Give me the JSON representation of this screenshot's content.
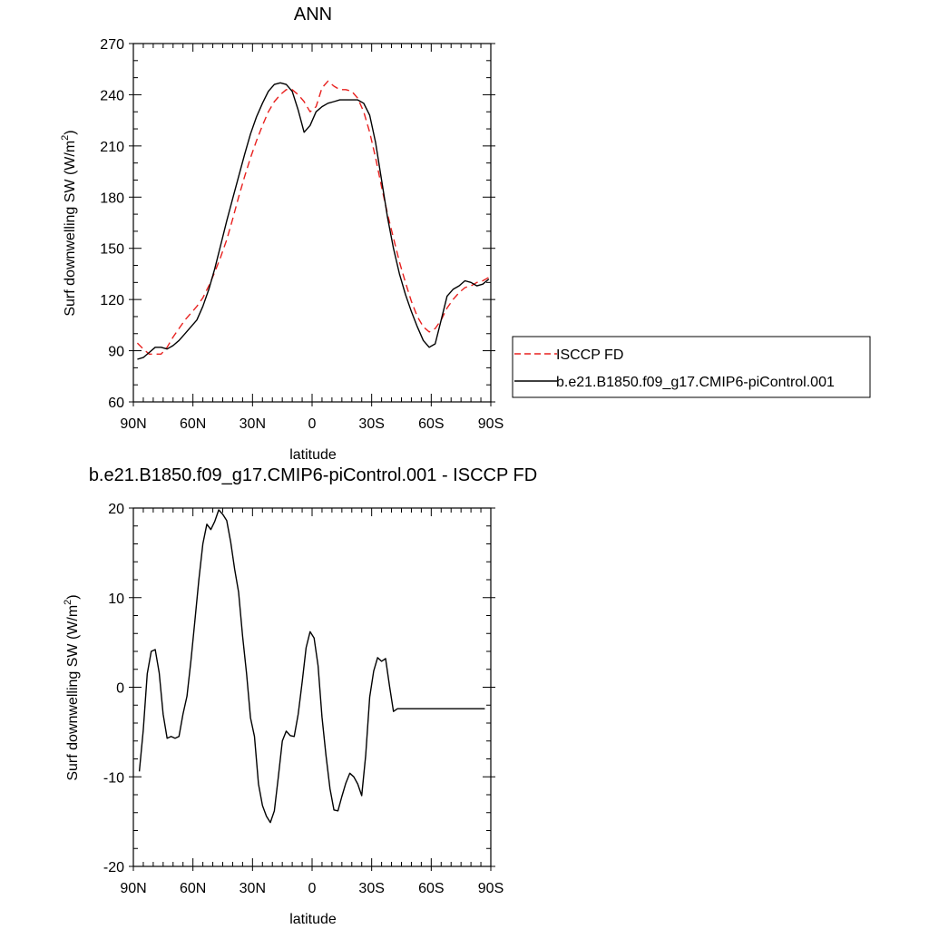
{
  "chart_data": [
    {
      "type": "line",
      "title": "ANN",
      "xlabel": "latitude",
      "ylabel_main": "Surf downwelling SW (W/m",
      "ylabel_sup": "2",
      "ylabel_tail": ")",
      "xlim": [
        90,
        -90
      ],
      "ylim": [
        60,
        270
      ],
      "x_ticks": [
        90,
        60,
        30,
        0,
        -30,
        -60,
        -90
      ],
      "x_tick_labels": [
        "90N",
        "60N",
        "30N",
        "0",
        "30S",
        "60S",
        "90S"
      ],
      "y_ticks": [
        60,
        90,
        120,
        150,
        180,
        210,
        240,
        270
      ],
      "y_tick_labels": [
        "60",
        "90",
        "120",
        "150",
        "180",
        "210",
        "240",
        "270"
      ],
      "legend_position": "right",
      "series": [
        {
          "name": "ISCCP FD",
          "color": "#e8201e",
          "dash": "dashed",
          "x": [
            88,
            85,
            82,
            79,
            76,
            73,
            70,
            67,
            64,
            61,
            58,
            55,
            52,
            49,
            46,
            43,
            40,
            37,
            34,
            31,
            28,
            25,
            22,
            19,
            16,
            13,
            10,
            7,
            4,
            1,
            -2,
            -5,
            -8,
            -11,
            -14,
            -17,
            -20,
            -23,
            -26,
            -29,
            -32,
            -35,
            -38,
            -41,
            -44,
            -47,
            -50,
            -53,
            -56,
            -59,
            -62,
            -65,
            -68,
            -71,
            -74,
            -77,
            -80,
            -83,
            -86,
            -89
          ],
          "y": [
            94.5,
            91.0,
            88.0,
            88.0,
            88.0,
            92.0,
            98.0,
            103.0,
            108.0,
            112.0,
            116.0,
            121.0,
            128.0,
            136.0,
            145.0,
            155.0,
            167.0,
            180.0,
            192.0,
            203.0,
            213.0,
            222.0,
            230.0,
            236.0,
            240.0,
            243.0,
            243.0,
            240.0,
            236.0,
            230.0,
            233.0,
            244.0,
            248.0,
            245.0,
            243.0,
            243.0,
            242.0,
            238.0,
            230.0,
            218.0,
            203.0,
            186.0,
            170.0,
            156.0,
            142.0,
            130.0,
            119.0,
            110.0,
            104.0,
            101.0,
            103.0,
            108.0,
            115.0,
            120.0,
            124.0,
            127.0,
            128.0,
            130.0,
            131.0,
            133.0
          ]
        },
        {
          "name": "b.e21.B1850.f09_g17.CMIP6-piControl.001",
          "color": "#000000",
          "dash": "solid",
          "x": [
            88,
            85,
            82,
            79,
            76,
            73,
            70,
            67,
            64,
            61,
            58,
            55,
            52,
            49,
            46,
            43,
            40,
            37,
            34,
            31,
            28,
            25,
            22,
            19,
            16,
            13,
            10,
            7,
            4,
            1,
            -2,
            -5,
            -8,
            -11,
            -14,
            -17,
            -20,
            -23,
            -26,
            -29,
            -32,
            -35,
            -38,
            -41,
            -44,
            -47,
            -50,
            -53,
            -56,
            -59,
            -62,
            -65,
            -68,
            -71,
            -74,
            -77,
            -80,
            -83,
            -86,
            -89
          ],
          "y": [
            85.0,
            86.0,
            89.0,
            92.0,
            92.0,
            91.0,
            93.0,
            96.0,
            100.0,
            104.0,
            108.0,
            116.0,
            126.0,
            138.0,
            152.0,
            166.0,
            179.0,
            192.0,
            205.0,
            217.0,
            227.0,
            235.0,
            242.0,
            246.0,
            247.0,
            246.0,
            242.0,
            231.0,
            218.0,
            222.0,
            230.0,
            233.0,
            235.0,
            236.0,
            237.0,
            237.0,
            237.0,
            237.0,
            235.0,
            228.0,
            212.0,
            190.0,
            168.0,
            150.0,
            135.0,
            123.0,
            113.0,
            104.0,
            96.0,
            92.0,
            94.0,
            108.0,
            122.0,
            126.0,
            128.0,
            131.0,
            130.0,
            128.0,
            129.0,
            132.0
          ]
        }
      ]
    },
    {
      "type": "line",
      "title": "b.e21.B1850.f09_g17.CMIP6-piControl.001 - ISCCP FD",
      "xlabel": "latitude",
      "ylabel_main": "Surf downwelling SW (W/m",
      "ylabel_sup": "2",
      "ylabel_tail": ")",
      "xlim": [
        90,
        -90
      ],
      "ylim": [
        -20,
        20
      ],
      "x_ticks": [
        90,
        60,
        30,
        0,
        -30,
        -60,
        -90
      ],
      "x_tick_labels": [
        "90N",
        "60N",
        "30N",
        "0",
        "30S",
        "60S",
        "90S"
      ],
      "y_ticks": [
        -20,
        -10,
        0,
        10,
        20
      ],
      "y_tick_labels": [
        "-20",
        "-10",
        "0",
        "10",
        "20"
      ],
      "series": [
        {
          "color": "#000000",
          "dash": "solid",
          "x": [
            87,
            85,
            83,
            81,
            79,
            77,
            75,
            73,
            71,
            69,
            67,
            65,
            63,
            61,
            59,
            57,
            55,
            53,
            51,
            49,
            47,
            45,
            43,
            41,
            39,
            37,
            35,
            33,
            31,
            29,
            27,
            25,
            23,
            21,
            19,
            17,
            15,
            13,
            11,
            9,
            7,
            5,
            3,
            1,
            -1,
            -3,
            -5,
            -7,
            -9,
            -11,
            -13,
            -15,
            -17,
            -19,
            -21,
            -23,
            -25,
            -27,
            -29,
            -31,
            -33,
            -35,
            -37,
            -39,
            -41,
            -43,
            -45,
            -47,
            -49,
            -51,
            -53,
            -55,
            -57,
            -59,
            -61,
            -63,
            -65,
            -67,
            -69,
            -71,
            -73,
            -75,
            -77,
            -79,
            -81,
            -83,
            -85,
            -87
          ],
          "y": [
            -9.4,
            -4.8,
            1.5,
            4.0,
            4.2,
            1.6,
            -3.0,
            -5.7,
            -5.5,
            -5.7,
            -5.5,
            -3.0,
            -1.0,
            3.0,
            7.5,
            12.0,
            16.0,
            18.2,
            17.6,
            18.5,
            19.8,
            19.3,
            18.6,
            16.2,
            13.2,
            10.6,
            5.7,
            1.5,
            -3.4,
            -5.5,
            -10.8,
            -13.2,
            -14.4,
            -15.1,
            -13.8,
            -10.0,
            -6.0,
            -4.9,
            -5.4,
            -5.5,
            -3.0,
            0.6,
            4.4,
            6.2,
            5.5,
            2.4,
            -3.3,
            -7.6,
            -11.3,
            -13.7,
            -13.8,
            -12.2,
            -10.7,
            -9.6,
            -10.0,
            -10.8,
            -12.1,
            -7.6,
            -1.1,
            1.8,
            3.3,
            2.9,
            3.2,
            0.1,
            -2.7,
            -2.4,
            -2.4,
            -2.4,
            -2.4,
            -2.4,
            -2.4,
            -2.4,
            -2.4,
            -2.4,
            -2.4,
            -2.4,
            -2.4,
            -2.4,
            -2.4,
            -2.4,
            -2.4,
            -2.4,
            -2.4,
            -2.4,
            -2.4,
            -2.4,
            -2.4,
            -2.4
          ]
        }
      ]
    }
  ]
}
